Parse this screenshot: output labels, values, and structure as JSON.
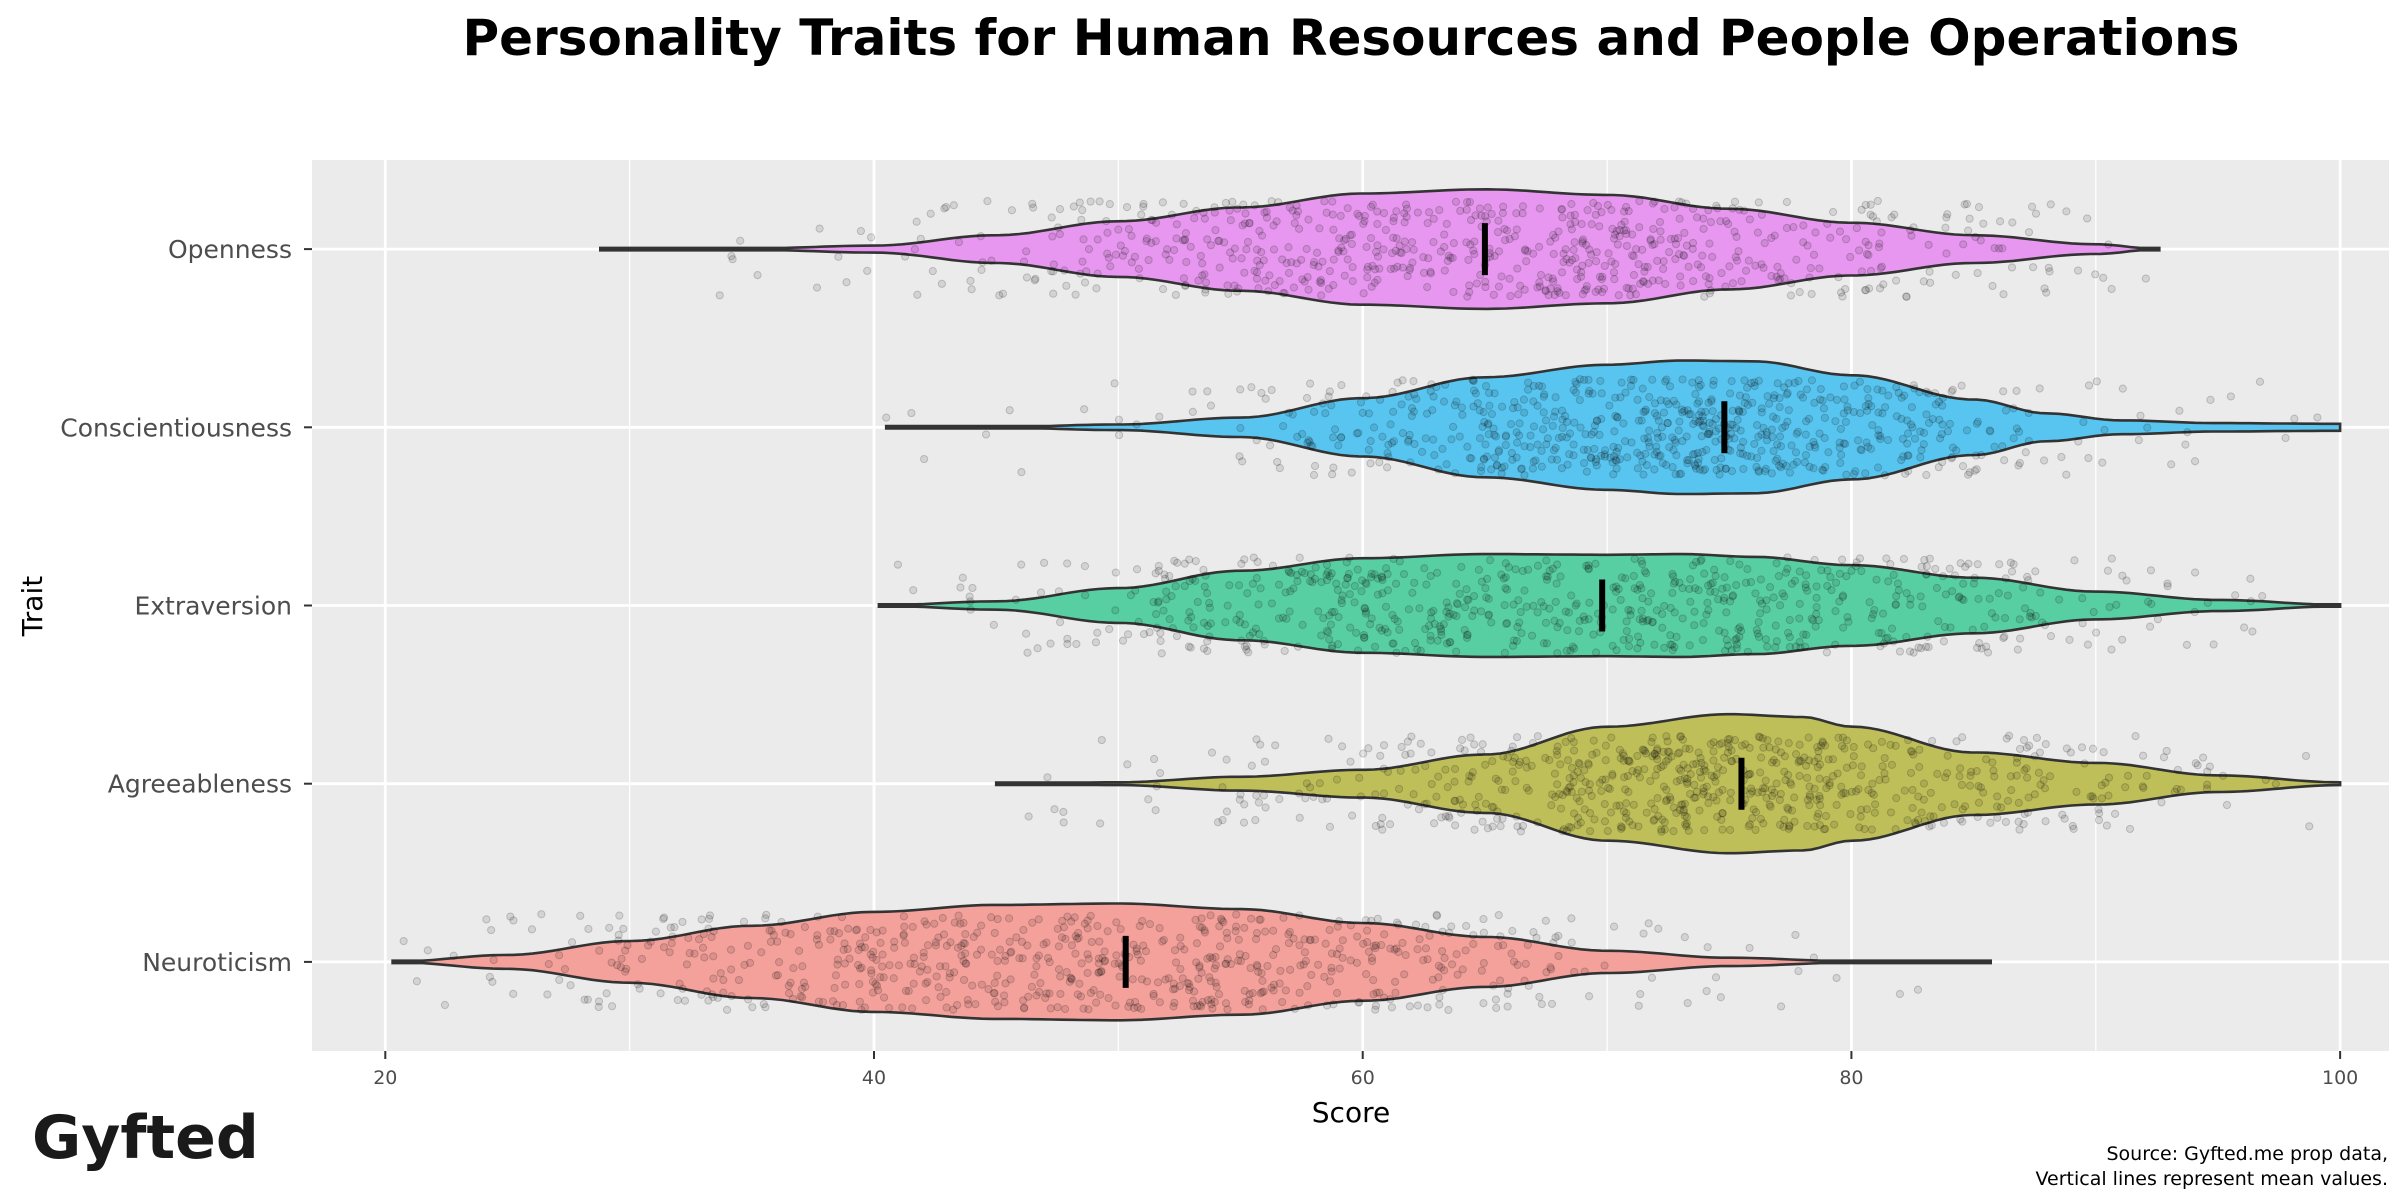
{
  "chart_data": {
    "type": "violin",
    "title": "Personality Traits for Human Resources and People Operations",
    "xlabel": "Score",
    "ylabel": "Trait",
    "xlim": [
      17,
      102
    ],
    "xticks": [
      20,
      40,
      60,
      80,
      100
    ],
    "grid": true,
    "legend": "none",
    "caption": [
      "Source: Gyfted.me prop data,",
      "Vertical lines represent mean values."
    ],
    "logo": "Gyfted",
    "categories": [
      "Openness",
      "Conscientiousness",
      "Extraversion",
      "Agreeableness",
      "Neuroticism"
    ],
    "series": [
      {
        "name": "Openness",
        "color": "#E797EF",
        "min": 28.8,
        "max": 92.6,
        "mean": 65.0,
        "density": [
          [
            28.8,
            0
          ],
          [
            35,
            0.01
          ],
          [
            40,
            0.05
          ],
          [
            45,
            0.2
          ],
          [
            50,
            0.4
          ],
          [
            55,
            0.6
          ],
          [
            60,
            0.8
          ],
          [
            65,
            0.86
          ],
          [
            70,
            0.78
          ],
          [
            75,
            0.58
          ],
          [
            80,
            0.38
          ],
          [
            85,
            0.2
          ],
          [
            90,
            0.07
          ],
          [
            92.6,
            0
          ]
        ]
      },
      {
        "name": "Conscientiousness",
        "color": "#58C5F0",
        "min": 40.5,
        "max": 100,
        "mean": 74.8,
        "density": [
          [
            40.5,
            0
          ],
          [
            45,
            0.005
          ],
          [
            50,
            0.04
          ],
          [
            55,
            0.14
          ],
          [
            60,
            0.42
          ],
          [
            65,
            0.72
          ],
          [
            70,
            0.9
          ],
          [
            73,
            0.96
          ],
          [
            76,
            0.95
          ],
          [
            80,
            0.75
          ],
          [
            85,
            0.4
          ],
          [
            88,
            0.2
          ],
          [
            91,
            0.1
          ],
          [
            95,
            0.06
          ],
          [
            100,
            0.05
          ]
        ]
      },
      {
        "name": "Extraversion",
        "color": "#58CFA2",
        "min": 40.2,
        "max": 100,
        "mean": 69.8,
        "density": [
          [
            40.2,
            0
          ],
          [
            45,
            0.06
          ],
          [
            50,
            0.25
          ],
          [
            55,
            0.5
          ],
          [
            60,
            0.68
          ],
          [
            65,
            0.74
          ],
          [
            70,
            0.73
          ],
          [
            73,
            0.74
          ],
          [
            76,
            0.7
          ],
          [
            80,
            0.58
          ],
          [
            85,
            0.4
          ],
          [
            90,
            0.2
          ],
          [
            95,
            0.08
          ],
          [
            100,
            0.01
          ]
        ]
      },
      {
        "name": "Agreeableness",
        "color": "#BFBF5A",
        "min": 45.0,
        "max": 100,
        "mean": 75.5,
        "density": [
          [
            45,
            0
          ],
          [
            50,
            0.02
          ],
          [
            55,
            0.1
          ],
          [
            60,
            0.2
          ],
          [
            65,
            0.42
          ],
          [
            70,
            0.82
          ],
          [
            75,
            1.0
          ],
          [
            78,
            0.96
          ],
          [
            80,
            0.82
          ],
          [
            85,
            0.45
          ],
          [
            90,
            0.3
          ],
          [
            95,
            0.12
          ],
          [
            100,
            0.02
          ]
        ]
      },
      {
        "name": "Neuroticism",
        "color": "#F4A19B",
        "min": 20.3,
        "max": 85.7,
        "mean": 50.3,
        "density": [
          [
            20.3,
            0
          ],
          [
            25,
            0.1
          ],
          [
            30,
            0.3
          ],
          [
            35,
            0.52
          ],
          [
            40,
            0.72
          ],
          [
            45,
            0.82
          ],
          [
            50,
            0.84
          ],
          [
            55,
            0.76
          ],
          [
            60,
            0.56
          ],
          [
            65,
            0.36
          ],
          [
            70,
            0.16
          ],
          [
            75,
            0.06
          ],
          [
            80,
            0.01
          ],
          [
            85.7,
            0
          ]
        ]
      }
    ]
  }
}
